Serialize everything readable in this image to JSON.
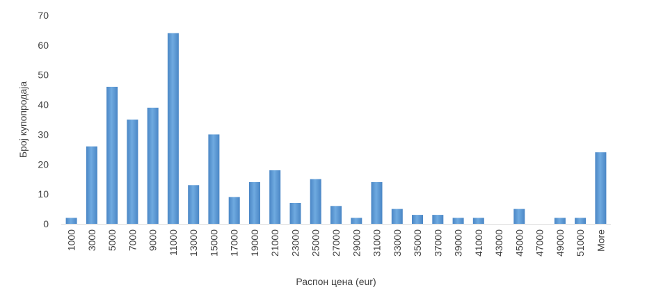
{
  "chart_data": {
    "type": "bar",
    "title": "",
    "xlabel": "Распон цена (eur)",
    "ylabel": "Број купопродаја",
    "ylim": [
      0,
      70
    ],
    "yticks": [
      0,
      10,
      20,
      30,
      40,
      50,
      60,
      70
    ],
    "grid": false,
    "legend": "none",
    "bar_color": "#5B9BD5",
    "categories": [
      "1000",
      "3000",
      "5000",
      "7000",
      "9000",
      "11000",
      "13000",
      "15000",
      "17000",
      "19000",
      "21000",
      "23000",
      "25000",
      "27000",
      "29000",
      "31000",
      "33000",
      "35000",
      "37000",
      "39000",
      "41000",
      "43000",
      "45000",
      "47000",
      "49000",
      "51000",
      "More"
    ],
    "values": [
      2,
      26,
      46,
      35,
      39,
      64,
      13,
      30,
      9,
      14,
      18,
      7,
      15,
      6,
      2,
      14,
      5,
      3,
      3,
      2,
      2,
      0,
      5,
      0,
      2,
      2,
      24
    ]
  }
}
